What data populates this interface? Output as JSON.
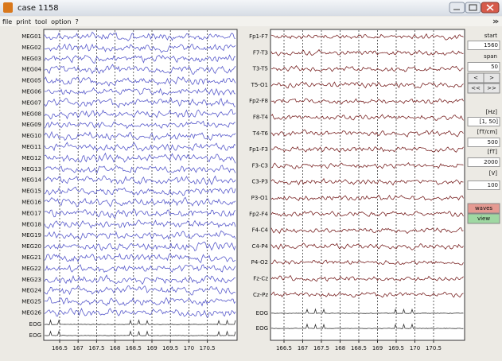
{
  "window": {
    "title": "case 1158"
  },
  "menu": [
    "file",
    "print",
    "tool",
    "option",
    "?"
  ],
  "left_panel": {
    "channels": [
      "MEG01",
      "MEG02",
      "MEG03",
      "MEG04",
      "MEG05",
      "MEG06",
      "MEG07",
      "MEG08",
      "MEG09",
      "MEG10",
      "MEG11",
      "MEG12",
      "MEG13",
      "MEG14",
      "MEG15",
      "MEG16",
      "MEG17",
      "MEG18",
      "MEG19",
      "MEG20",
      "MEG21",
      "MEG22",
      "MEG23",
      "MEG24",
      "MEG25",
      "MEG26",
      "EOG",
      "EOG"
    ],
    "x_ticks": [
      "166.5",
      "167",
      "167.5",
      "168",
      "168.5",
      "169",
      "169.5",
      "170",
      "170.5"
    ]
  },
  "right_panel": {
    "channels": [
      "Fp1-F7",
      "F7-T3",
      "T3-T5",
      "T5-O1",
      "Fp2-F8",
      "F8-T4",
      "T4-T6",
      "Fp1-F3",
      "F3-C3",
      "C3-P3",
      "P3-O1",
      "Fp2-F4",
      "F4-C4",
      "C4-P4",
      "P4-O2",
      "Fz-Cz",
      "Cz-Pz",
      "EOG",
      "EOG"
    ],
    "x_ticks": [
      "166.5",
      "167",
      "167.5",
      "168",
      "168.5",
      "169",
      "169.5",
      "170",
      "170.5"
    ]
  },
  "controls": {
    "start_label": "start",
    "start": "1560",
    "span_label": "span",
    "span": "50",
    "prev": "<",
    "next": ">",
    "rewind": "<<",
    "forward": ">>",
    "filter_unit": "[Hz]",
    "filter": "[1, 50]",
    "grad_unit": "[fT/cm]",
    "grad": "500",
    "mag_unit": "[fT]",
    "mag": "2000",
    "eeg_unit": "[V]",
    "eeg": "100",
    "waves": "waves",
    "view": "view"
  }
}
